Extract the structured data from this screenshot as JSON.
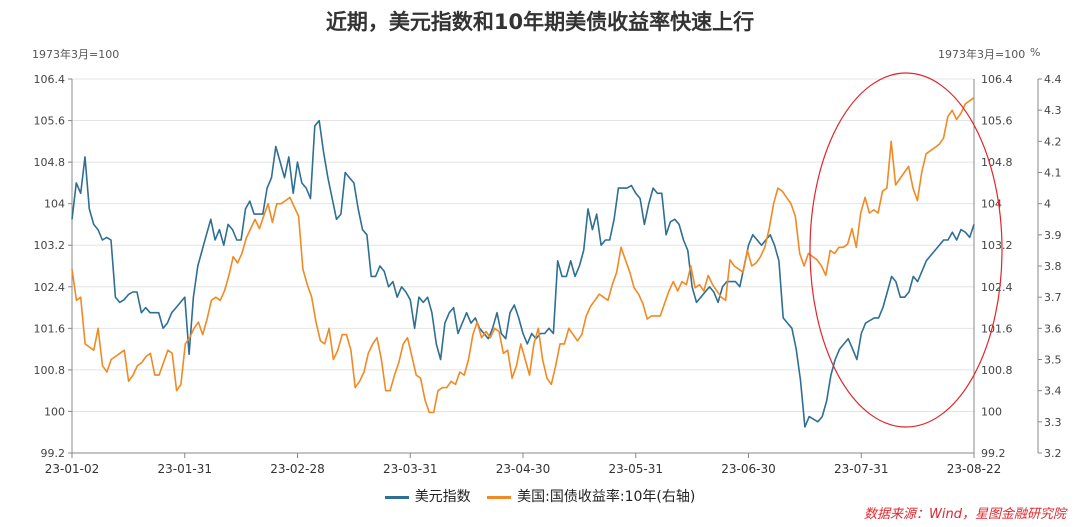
{
  "chart_data": {
    "type": "line",
    "title": "近期，美元指数和10年期美债收益率快速上行",
    "left_unit": "1973年3月=100",
    "right_unit": "1973年3月=100",
    "right_unit_extra": "%",
    "x_ticks": [
      "23-01-02",
      "23-01-31",
      "23-02-28",
      "23-03-31",
      "23-04-30",
      "23-05-31",
      "23-06-30",
      "23-07-31",
      "23-08-22"
    ],
    "y_left": {
      "min": 99.2,
      "max": 106.4,
      "ticks": [
        "99.2",
        "100",
        "100.8",
        "101.6",
        "102.4",
        "103.2",
        "104",
        "104.8",
        "105.6",
        "106.4"
      ]
    },
    "y_right": {
      "min": 3.2,
      "max": 4.4,
      "ticks": [
        "3.2",
        "3.3",
        "3.4",
        "3.5",
        "3.6",
        "3.7",
        "3.8",
        "3.9",
        "4",
        "4.1",
        "4.2",
        "4.3",
        "4.4"
      ]
    },
    "series": [
      {
        "name": "美元指数",
        "axis": "left",
        "color": "#2e6f94",
        "values": [
          103.7,
          104.4,
          104.2,
          104.9,
          103.9,
          103.6,
          103.5,
          103.3,
          103.35,
          103.3,
          102.2,
          102.1,
          102.15,
          102.25,
          102.3,
          102.3,
          101.9,
          102,
          101.9,
          101.9,
          101.9,
          101.6,
          101.7,
          101.9,
          102,
          102.1,
          102.2,
          101.1,
          102.2,
          102.8,
          103.1,
          103.4,
          103.7,
          103.3,
          103.5,
          103.2,
          103.6,
          103.5,
          103.3,
          103.3,
          103.9,
          104.05,
          103.8,
          103.8,
          103.8,
          104.3,
          104.5,
          105.1,
          104.8,
          104.5,
          104.9,
          104.2,
          104.8,
          104.4,
          104.3,
          104.1,
          105.5,
          105.6,
          105,
          104.5,
          104.1,
          103.7,
          103.8,
          104.6,
          104.5,
          104.4,
          103.9,
          103.5,
          103.4,
          102.6,
          102.6,
          102.8,
          102.7,
          102.4,
          102.5,
          102.2,
          102.4,
          102.3,
          102.15,
          101.6,
          102.2,
          102.1,
          102.2,
          101.9,
          101.3,
          101,
          101.7,
          101.9,
          102,
          101.5,
          101.7,
          101.9,
          101.7,
          101.8,
          101.6,
          101.5,
          101.4,
          101.6,
          101.9,
          101.5,
          101.4,
          101.9,
          102.05,
          101.8,
          101.5,
          101.3,
          101.5,
          101.4,
          101.5,
          101.5,
          101.6,
          101.5,
          102.9,
          102.6,
          102.6,
          102.9,
          102.6,
          102.8,
          103.1,
          103.9,
          103.5,
          103.8,
          103.2,
          103.3,
          103.3,
          103.7,
          104.3,
          104.3,
          104.3,
          104.35,
          104.2,
          104.1,
          103.6,
          104,
          104.3,
          104.2,
          104.2,
          103.4,
          103.65,
          103.7,
          103.6,
          103.3,
          103.1,
          102.4,
          102.1,
          102.2,
          102.3,
          102.4,
          102.3,
          102.1,
          102.4,
          102.5,
          102.5,
          102.5,
          102.4,
          102.8,
          103.2,
          103.4,
          103.3,
          103.2,
          103.3,
          103.4,
          103.2,
          102.9,
          101.8,
          101.7,
          101.6,
          101.2,
          100.6,
          99.7,
          99.9,
          99.85,
          99.8,
          99.9,
          100.2,
          100.7,
          101,
          101.2,
          101.3,
          101.4,
          101.2,
          101,
          101.5,
          101.7,
          101.75,
          101.8,
          101.8,
          102,
          102.3,
          102.6,
          102.5,
          102.2,
          102.2,
          102.3,
          102.6,
          102.5,
          102.7,
          102.9,
          103,
          103.1,
          103.2,
          103.3,
          103.3,
          103.45,
          103.3,
          103.5,
          103.45,
          103.35,
          103.6
        ]
      },
      {
        "name": "美国:国债收益率:10年(右轴)",
        "axis": "right",
        "color": "#f08a24",
        "values": [
          3.79,
          3.69,
          3.7,
          3.55,
          3.54,
          3.53,
          3.6,
          3.48,
          3.46,
          3.5,
          3.51,
          3.52,
          3.53,
          3.43,
          3.45,
          3.48,
          3.49,
          3.51,
          3.52,
          3.45,
          3.45,
          3.49,
          3.53,
          3.52,
          3.4,
          3.42,
          3.55,
          3.57,
          3.6,
          3.62,
          3.58,
          3.63,
          3.69,
          3.7,
          3.69,
          3.72,
          3.77,
          3.83,
          3.81,
          3.84,
          3.89,
          3.92,
          3.95,
          3.92,
          3.96,
          4.0,
          3.94,
          4.0,
          4.0,
          4.01,
          4.02,
          3.99,
          3.96,
          3.79,
          3.74,
          3.7,
          3.62,
          3.56,
          3.55,
          3.6,
          3.5,
          3.53,
          3.58,
          3.58,
          3.53,
          3.41,
          3.43,
          3.46,
          3.52,
          3.55,
          3.57,
          3.5,
          3.4,
          3.4,
          3.45,
          3.49,
          3.55,
          3.57,
          3.51,
          3.45,
          3.44,
          3.37,
          3.33,
          3.33,
          3.4,
          3.41,
          3.41,
          3.43,
          3.42,
          3.46,
          3.45,
          3.5,
          3.58,
          3.62,
          3.57,
          3.59,
          3.57,
          3.6,
          3.59,
          3.52,
          3.53,
          3.44,
          3.48,
          3.55,
          3.5,
          3.45,
          3.55,
          3.6,
          3.5,
          3.44,
          3.42,
          3.48,
          3.55,
          3.55,
          3.6,
          3.58,
          3.56,
          3.58,
          3.64,
          3.67,
          3.69,
          3.71,
          3.7,
          3.69,
          3.74,
          3.78,
          3.86,
          3.82,
          3.78,
          3.73,
          3.71,
          3.68,
          3.63,
          3.64,
          3.64,
          3.64,
          3.68,
          3.72,
          3.75,
          3.72,
          3.75,
          3.74,
          3.8,
          3.73,
          3.74,
          3.72,
          3.77,
          3.74,
          3.72,
          3.7,
          3.69,
          3.82,
          3.8,
          3.79,
          3.78,
          3.85,
          3.8,
          3.81,
          3.83,
          3.86,
          3.92,
          4.0,
          4.05,
          4.04,
          4.02,
          4.0,
          3.96,
          3.84,
          3.8,
          3.84,
          3.83,
          3.82,
          3.8,
          3.77,
          3.85,
          3.84,
          3.86,
          3.86,
          3.87,
          3.92,
          3.86,
          3.97,
          4.02,
          3.97,
          3.98,
          3.97,
          4.04,
          4.05,
          4.2,
          4.06,
          4.08,
          4.1,
          4.12,
          4.05,
          4.01,
          4.1,
          4.16,
          4.17,
          4.18,
          4.19,
          4.21,
          4.28,
          4.3,
          4.27,
          4.29,
          4.32,
          4.33,
          4.34
        ]
      }
    ],
    "legend_position": "bottom",
    "grid": true,
    "source": "数据来源：Wind，星图金融研究院",
    "annotation": "red ellipse highlighting late July – August 2023"
  }
}
